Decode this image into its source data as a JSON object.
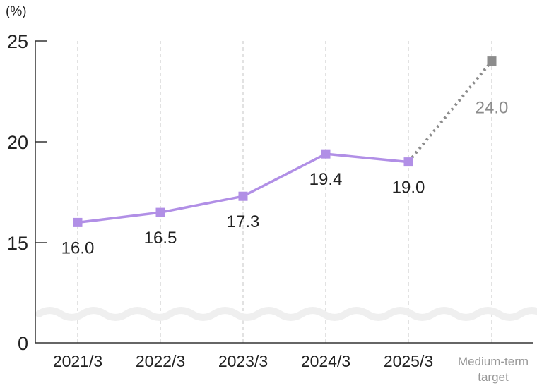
{
  "chart_data": {
    "type": "line",
    "unit_label": "(%)",
    "y_ticks": [
      "0",
      "15",
      "20",
      "25"
    ],
    "axis_break": true,
    "grid": "vertical-dashed",
    "categories": [
      "2021/3",
      "2022/3",
      "2023/3",
      "2024/3",
      "2025/3"
    ],
    "target_category": [
      "Medium-term",
      "target"
    ],
    "series": [
      {
        "values": [
          16.0,
          16.5,
          17.3,
          19.4,
          19.0
        ],
        "labels": [
          "16.0",
          "16.5",
          "17.3",
          "19.4",
          "19.0"
        ],
        "color": "#b18fe6"
      }
    ],
    "target": {
      "value": 24.0,
      "label": "24.0",
      "color": "#8c8c8c"
    }
  }
}
